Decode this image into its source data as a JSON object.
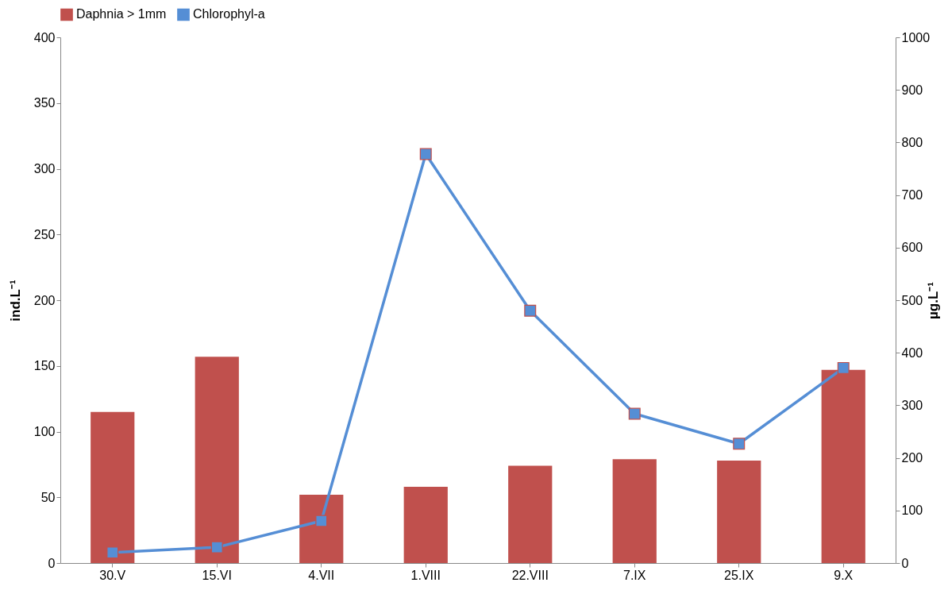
{
  "chart_data": {
    "type": "bar",
    "categories": [
      "30.V",
      "15.VI",
      "4.VII",
      "1.VIII",
      "22.VIII",
      "7.IX",
      "25.IX",
      "9.X"
    ],
    "series": [
      {
        "name": "Daphnia > 1mm",
        "color": "#c0504d",
        "values": [
          115,
          157,
          52,
          58,
          74,
          79,
          78,
          147
        ]
      },
      {
        "name": "Chlorophyl-a",
        "type": "line",
        "axis": "y2",
        "color": "#558ed5",
        "values": [
          20,
          30,
          80,
          778,
          480,
          284,
          227,
          371
        ]
      }
    ],
    "ylabel": "ind.L⁻¹",
    "y2label": "µg.L⁻¹",
    "ylim": [
      0,
      400
    ],
    "yticks": [
      0,
      50,
      100,
      150,
      200,
      250,
      300,
      350,
      400
    ],
    "y2lim": [
      0,
      1000
    ],
    "y2ticks": [
      0,
      100,
      200,
      300,
      400,
      500,
      600,
      700,
      800,
      900,
      1000
    ],
    "legend": "top",
    "grid": false,
    "marker": "square",
    "line_style": "solid"
  }
}
